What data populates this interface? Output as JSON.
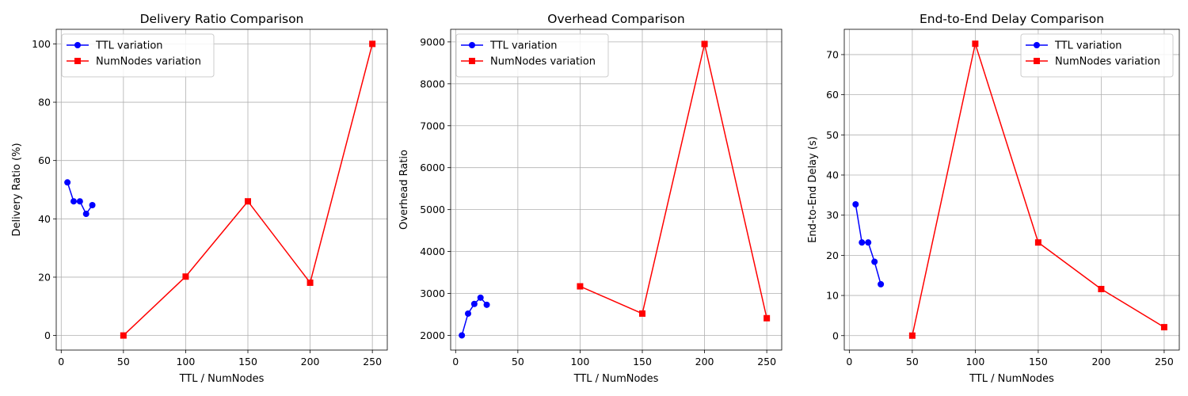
{
  "chart_data": [
    {
      "type": "line",
      "title": "Delivery Ratio Comparison",
      "xlabel": "TTL / NumNodes",
      "ylabel": "Delivery Ratio (%)",
      "xlim": [
        -4,
        262
      ],
      "ylim": [
        -5,
        105
      ],
      "xticks": [
        0,
        50,
        100,
        150,
        200,
        250
      ],
      "yticks": [
        0,
        20,
        40,
        60,
        80,
        100
      ],
      "grid": true,
      "legend": "top-left",
      "series": [
        {
          "name": "TTL variation",
          "color": "#0000ff",
          "marker": "circle",
          "x": [
            5,
            10,
            15,
            20,
            25
          ],
          "y": [
            52.5,
            46,
            46,
            41.7,
            44.7
          ]
        },
        {
          "name": "NumNodes variation",
          "color": "#ff0000",
          "marker": "square",
          "x": [
            50,
            100,
            150,
            200,
            250
          ],
          "y": [
            0,
            20.2,
            46,
            18.1,
            100
          ]
        }
      ]
    },
    {
      "type": "line",
      "title": "Overhead Comparison",
      "xlabel": "TTL / NumNodes",
      "ylabel": "Overhead Ratio",
      "xlim": [
        -4,
        262
      ],
      "ylim": [
        1650,
        9300
      ],
      "xticks": [
        0,
        50,
        100,
        150,
        200,
        250
      ],
      "yticks": [
        2000,
        3000,
        4000,
        5000,
        6000,
        7000,
        8000,
        9000
      ],
      "grid": true,
      "legend": "top-left",
      "series": [
        {
          "name": "TTL variation",
          "color": "#0000ff",
          "marker": "circle",
          "x": [
            5,
            10,
            15,
            20,
            25
          ],
          "y": [
            2000,
            2520,
            2750,
            2900,
            2730
          ]
        },
        {
          "name": "NumNodes variation",
          "color": "#ff0000",
          "marker": "square",
          "x": [
            100,
            150,
            200,
            250
          ],
          "y": [
            3170,
            2520,
            8950,
            2410
          ]
        }
      ]
    },
    {
      "type": "line",
      "title": "End-to-End Delay Comparison",
      "xlabel": "TTL / NumNodes",
      "ylabel": "End-to-End Delay (s)",
      "xlim": [
        -4,
        262
      ],
      "ylim": [
        -3.6,
        76.3
      ],
      "xticks": [
        0,
        50,
        100,
        150,
        200,
        250
      ],
      "yticks": [
        0,
        10,
        20,
        30,
        40,
        50,
        60,
        70
      ],
      "grid": true,
      "legend": "top-right",
      "series": [
        {
          "name": "TTL variation",
          "color": "#0000ff",
          "marker": "circle",
          "x": [
            5,
            10,
            15,
            20,
            25
          ],
          "y": [
            32.7,
            23.2,
            23.2,
            18.4,
            12.8
          ]
        },
        {
          "name": "NumNodes variation",
          "color": "#ff0000",
          "marker": "square",
          "x": [
            50,
            100,
            150,
            200,
            250
          ],
          "y": [
            0,
            72.7,
            23.2,
            11.6,
            2.1
          ]
        }
      ]
    }
  ]
}
